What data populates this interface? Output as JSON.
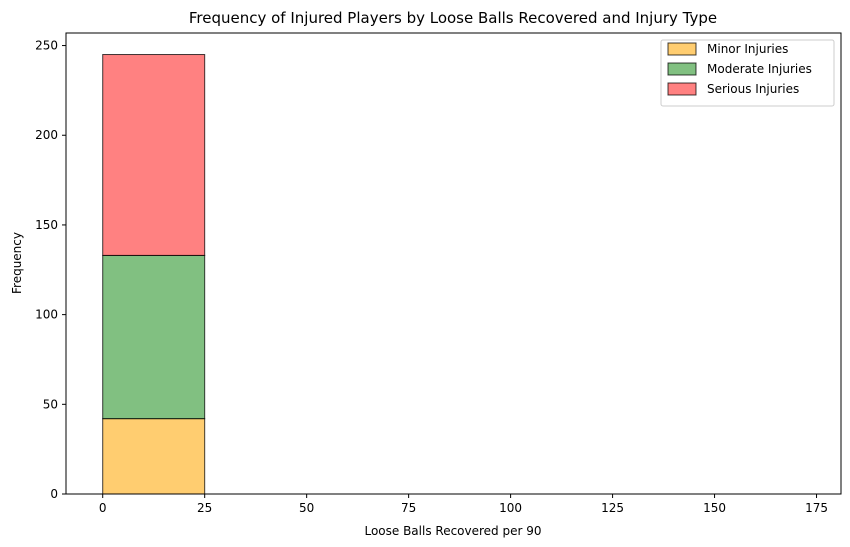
{
  "chart_data": {
    "type": "bar",
    "title": "Frequency of Injured Players by Loose Balls Recovered and Injury Type",
    "xlabel": "Loose Balls Recovered per 90",
    "ylabel": "Frequency",
    "xlim": [
      -9,
      181
    ],
    "ylim": [
      0,
      257
    ],
    "xticks": [
      "0",
      "25",
      "50",
      "75",
      "100",
      "125",
      "150",
      "175"
    ],
    "yticks": [
      "0",
      "50",
      "100",
      "150",
      "200",
      "250"
    ],
    "bin_edges": [
      0,
      25,
      50,
      75,
      100,
      125,
      150,
      175
    ],
    "stacked": true,
    "legend_position": "top-right",
    "series": [
      {
        "name": "Minor Injuries",
        "color": "#FFB833",
        "values": [
          42,
          0,
          0,
          0,
          0,
          0,
          0
        ]
      },
      {
        "name": "Moderate Injuries",
        "color": "#4CA54C",
        "values": [
          91,
          0,
          0,
          0,
          0,
          0,
          0
        ]
      },
      {
        "name": "Serious Injuries",
        "color": "#FF4C4C",
        "values": [
          112,
          0,
          0,
          0,
          0,
          0,
          0
        ]
      }
    ]
  }
}
